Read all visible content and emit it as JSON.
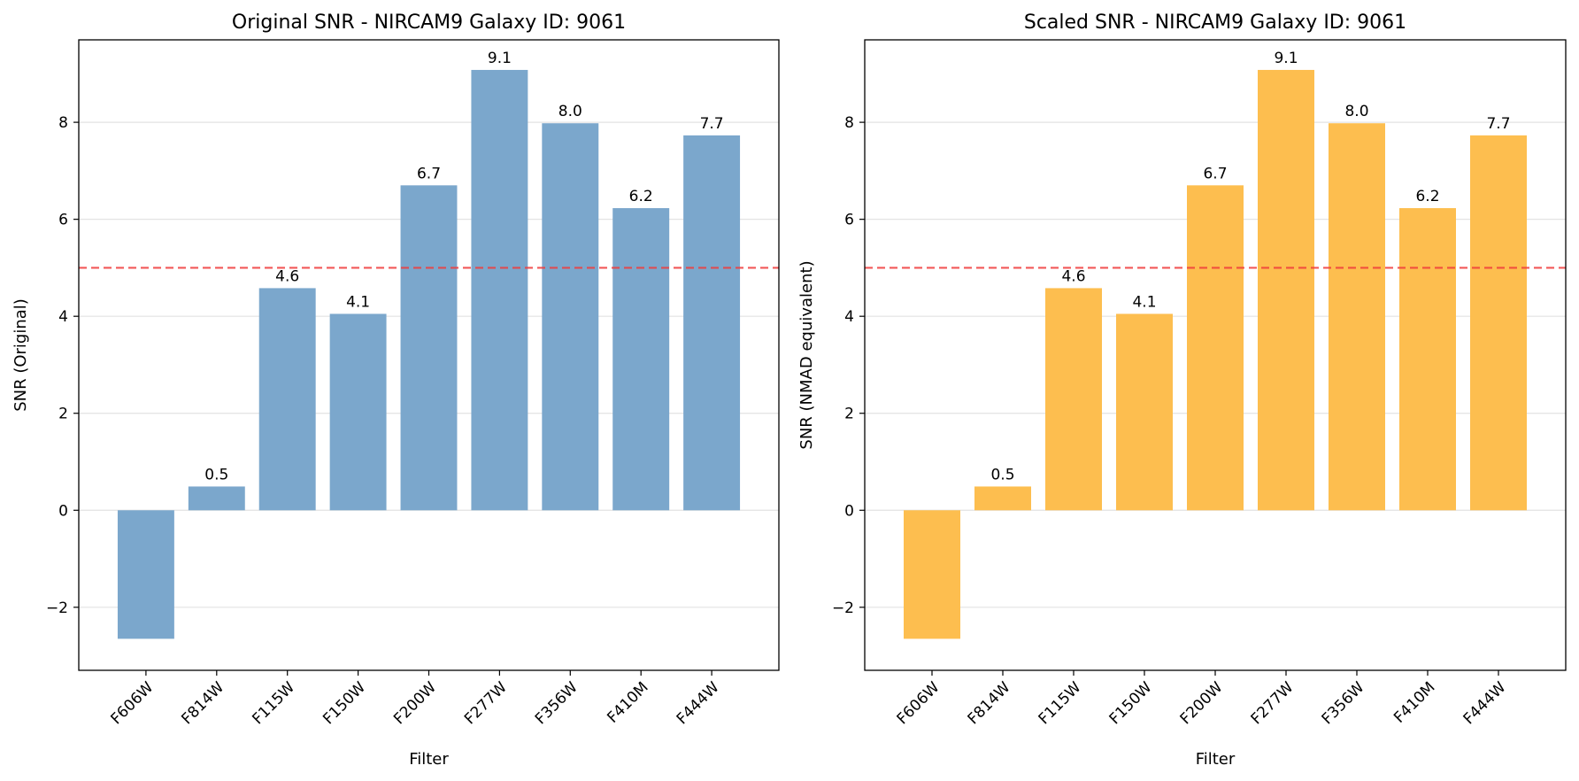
{
  "chart_data": [
    {
      "type": "bar",
      "title": "Original SNR - NIRCAM9 Galaxy ID: 9061",
      "xlabel": "Filter",
      "ylabel": "SNR (Original)",
      "categories": [
        "F606W",
        "F814W",
        "F115W",
        "F150W",
        "F200W",
        "F277W",
        "F356W",
        "F410M",
        "F444W"
      ],
      "values": [
        -2.65,
        0.49,
        4.58,
        4.05,
        6.7,
        9.08,
        7.98,
        6.23,
        7.73
      ],
      "value_labels": [
        "",
        "0.5",
        "4.6",
        "4.1",
        "6.7",
        "9.1",
        "8.0",
        "6.2",
        "7.7"
      ],
      "ylim": [
        -3.3,
        9.7
      ],
      "yticks": [
        -2,
        0,
        2,
        4,
        6,
        8
      ],
      "ytick_labels": [
        "−2",
        "0",
        "2",
        "4",
        "6",
        "8"
      ],
      "reference_line": 5.0,
      "bar_color": "#7ba7cc",
      "reference_color": "#f03c3c",
      "grid": "y"
    },
    {
      "type": "bar",
      "title": "Scaled SNR - NIRCAM9 Galaxy ID: 9061",
      "xlabel": "Filter",
      "ylabel": "SNR (NMAD equivalent)",
      "categories": [
        "F606W",
        "F814W",
        "F115W",
        "F150W",
        "F200W",
        "F277W",
        "F356W",
        "F410M",
        "F444W"
      ],
      "values": [
        -2.65,
        0.49,
        4.58,
        4.05,
        6.7,
        9.08,
        7.98,
        6.23,
        7.73
      ],
      "value_labels": [
        "",
        "0.5",
        "4.6",
        "4.1",
        "6.7",
        "9.1",
        "8.0",
        "6.2",
        "7.7"
      ],
      "ylim": [
        -3.3,
        9.7
      ],
      "yticks": [
        -2,
        0,
        2,
        4,
        6,
        8
      ],
      "ytick_labels": [
        "−2",
        "0",
        "2",
        "4",
        "6",
        "8"
      ],
      "reference_line": 5.0,
      "bar_color": "#fdbe4f",
      "reference_color": "#f03c3c",
      "grid": "y"
    }
  ]
}
